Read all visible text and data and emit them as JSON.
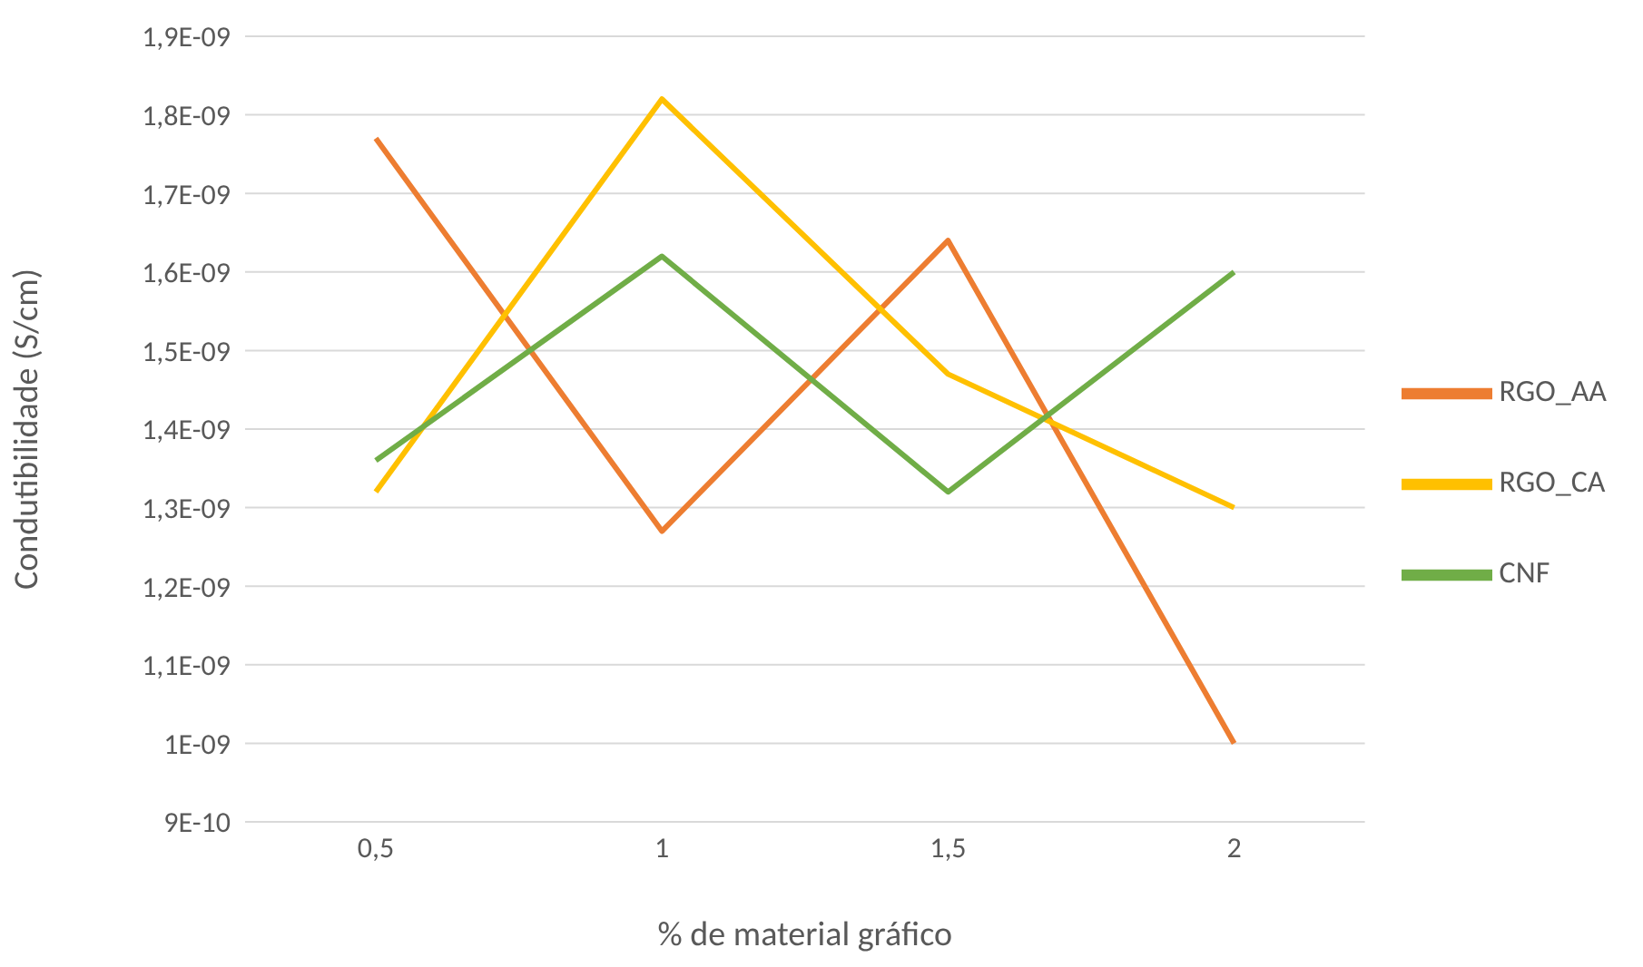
{
  "chart_data": {
    "type": "line",
    "xlabel": "% de material gráfico",
    "ylabel": "Condutibilidade (S/cm)",
    "categories": [
      "0,5",
      "1",
      "1,5",
      "2"
    ],
    "series": [
      {
        "name": "RGO_AA",
        "color": "#ed7d31",
        "values": [
          1.77e-09,
          1.27e-09,
          1.64e-09,
          1e-09
        ]
      },
      {
        "name": "RGO_CA",
        "color": "#ffc000",
        "values": [
          1.32e-09,
          1.82e-09,
          1.47e-09,
          1.3e-09
        ]
      },
      {
        "name": "CNF",
        "color": "#70ad47",
        "values": [
          1.36e-09,
          1.62e-09,
          1.32e-09,
          1.6e-09
        ]
      }
    ],
    "ylim": [
      9e-10,
      1.9e-09
    ],
    "yticks": [
      {
        "value": 9e-10,
        "label": "9E-10"
      },
      {
        "value": 1e-09,
        "label": "1E-09"
      },
      {
        "value": 1.1e-09,
        "label": "1,1E-09"
      },
      {
        "value": 1.2e-09,
        "label": "1,2E-09"
      },
      {
        "value": 1.3e-09,
        "label": "1,3E-09"
      },
      {
        "value": 1.4e-09,
        "label": "1,4E-09"
      },
      {
        "value": 1.5e-09,
        "label": "1,5E-09"
      },
      {
        "value": 1.6e-09,
        "label": "1,6E-09"
      },
      {
        "value": 1.7e-09,
        "label": "1,7E-09"
      },
      {
        "value": 1.8e-09,
        "label": "1,8E-09"
      },
      {
        "value": 1.9e-09,
        "label": "1,9E-09"
      }
    ],
    "grid": "y",
    "legend": "right",
    "marker": "none",
    "line_style": "solid"
  }
}
